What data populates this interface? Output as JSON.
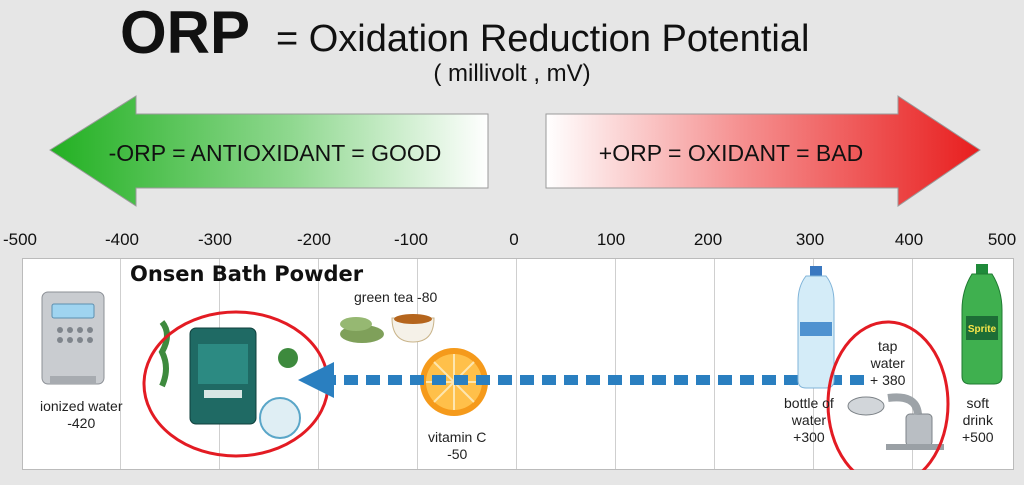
{
  "title": {
    "main": "ORP",
    "rest": "= Oxidation Reduction Potential",
    "unit": "( millivolt , mV)"
  },
  "arrows": {
    "good": "-ORP = ANTIOXIDANT = GOOD",
    "bad": "+ORP = OXIDANT = BAD"
  },
  "axis_ticks": [
    "-500",
    "-400",
    "-300",
    "-200",
    "-100",
    "0",
    "100",
    "200",
    "300",
    "400",
    "500"
  ],
  "product": {
    "brand": "Onsen Bath Powder"
  },
  "items": {
    "ionized_water": {
      "line1": "ionized water",
      "line2": "-420"
    },
    "green_tea": {
      "line1": "green tea -80"
    },
    "vitamin_c": {
      "line1": "vitamin C",
      "line2": "-50"
    },
    "bottled_water": {
      "line1": "bottle of",
      "line2": "water",
      "line3": "+300"
    },
    "tap_water": {
      "line1": "tap",
      "line2": "water",
      "line3": "+ 380"
    },
    "soft_drink": {
      "line1": "soft",
      "line2": "drink",
      "line3": "+500"
    },
    "sprite_logo": "Sprite"
  },
  "colors": {
    "good": "#2fb82f",
    "bad": "#ee2b2b",
    "accent_arrow": "#2a7fc0",
    "highlight_ring": "#e31b23"
  }
}
